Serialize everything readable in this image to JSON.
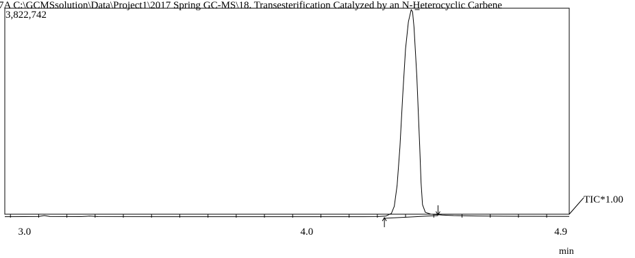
{
  "header": {
    "path_text": "7A C:\\GCMSsolution\\Data\\Project1\\2017 Spring GC-MS\\18. Transesterification Catalyzed by an N-Heterocyclic Carbene",
    "ymax_label": "3,822,742"
  },
  "chart_data": {
    "type": "line",
    "xlabel": "min",
    "ylabel": "",
    "xlim": [
      2.93,
      4.93
    ],
    "ylim": [
      0,
      3822742
    ],
    "x_ticks": [
      3.0,
      4.0,
      4.9
    ],
    "x_tick_labels": [
      "3.0",
      "4.0",
      "4.9"
    ],
    "series": [
      {
        "name": "TIC*1.00",
        "points": [
          [
            2.93,
            30000
          ],
          [
            3.0,
            31000
          ],
          [
            3.05,
            32000
          ],
          [
            3.07,
            50000
          ],
          [
            3.09,
            33000
          ],
          [
            3.2,
            31000
          ],
          [
            3.23,
            40000
          ],
          [
            3.26,
            31000
          ],
          [
            3.5,
            30000
          ],
          [
            3.8,
            30000
          ],
          [
            4.0,
            30000
          ],
          [
            4.2,
            30000
          ],
          [
            4.25,
            31000
          ],
          [
            4.28,
            40000
          ],
          [
            4.3,
            90000
          ],
          [
            4.31,
            220000
          ],
          [
            4.32,
            600000
          ],
          [
            4.33,
            1300000
          ],
          [
            4.34,
            2250000
          ],
          [
            4.35,
            3100000
          ],
          [
            4.36,
            3600000
          ],
          [
            4.37,
            3822742
          ],
          [
            4.375,
            3780000
          ],
          [
            4.38,
            3500000
          ],
          [
            4.39,
            2600000
          ],
          [
            4.4,
            1350000
          ],
          [
            4.405,
            650000
          ],
          [
            4.41,
            250000
          ],
          [
            4.42,
            110000
          ],
          [
            4.44,
            75000
          ],
          [
            4.48,
            60000
          ],
          [
            4.52,
            50000
          ],
          [
            4.6,
            42000
          ],
          [
            4.7,
            38000
          ],
          [
            4.8,
            36000
          ],
          [
            4.93,
            34000
          ]
        ]
      }
    ],
    "integration": {
      "start_x": 4.275,
      "start_y": 0,
      "end_x": 4.465,
      "end_y": 50000
    },
    "peak_marker_x": 4.39
  }
}
